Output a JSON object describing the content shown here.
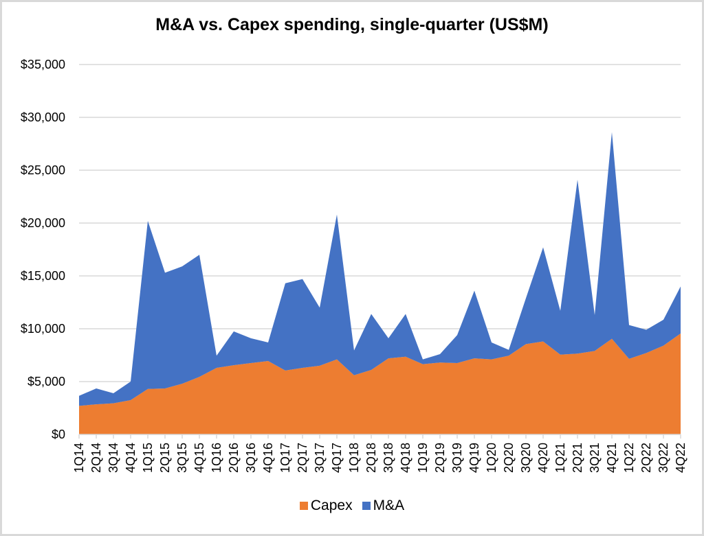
{
  "chart_data": {
    "type": "area",
    "stacked": true,
    "title": "M&A vs. Capex spending, single-quarter (US$M)",
    "xlabel": "",
    "ylabel": "",
    "ylim": [
      0,
      35000
    ],
    "yticks": [
      0,
      5000,
      10000,
      15000,
      20000,
      25000,
      30000,
      35000
    ],
    "ytick_labels": [
      "$0",
      "$5,000",
      "$10,000",
      "$15,000",
      "$20,000",
      "$25,000",
      "$30,000",
      "$35,000"
    ],
    "grid": true,
    "legend_position": "bottom",
    "categories": [
      "1Q14",
      "2Q14",
      "3Q14",
      "4Q14",
      "1Q15",
      "2Q15",
      "3Q15",
      "4Q15",
      "1Q16",
      "2Q16",
      "3Q16",
      "4Q16",
      "1Q17",
      "2Q17",
      "3Q17",
      "4Q17",
      "1Q18",
      "2Q18",
      "3Q18",
      "4Q18",
      "1Q19",
      "2Q19",
      "3Q19",
      "4Q19",
      "1Q20",
      "2Q20",
      "3Q20",
      "4Q20",
      "1Q21",
      "2Q21",
      "3Q21",
      "4Q21",
      "1Q22",
      "2Q22",
      "3Q22",
      "4Q22"
    ],
    "series": [
      {
        "name": "Capex",
        "color": "#ed7d31",
        "values": [
          2700,
          2850,
          2950,
          3250,
          4300,
          4350,
          4800,
          5450,
          6300,
          6550,
          6750,
          6950,
          6050,
          6300,
          6500,
          7100,
          5600,
          6100,
          7200,
          7350,
          6650,
          6800,
          6750,
          7200,
          7100,
          7450,
          8550,
          8800,
          7550,
          7650,
          7900,
          9050,
          7150,
          7700,
          8400,
          9550
        ]
      },
      {
        "name": "M&A",
        "color": "#4472c4",
        "values": [
          950,
          1500,
          950,
          1750,
          15900,
          10950,
          11100,
          11550,
          1150,
          3200,
          2350,
          1750,
          8250,
          8400,
          5500,
          13700,
          2350,
          5300,
          1900,
          4050,
          450,
          800,
          2650,
          6400,
          1600,
          550,
          4350,
          8900,
          4150,
          16450,
          3400,
          19550,
          3200,
          2200,
          2450,
          4450
        ]
      }
    ]
  }
}
